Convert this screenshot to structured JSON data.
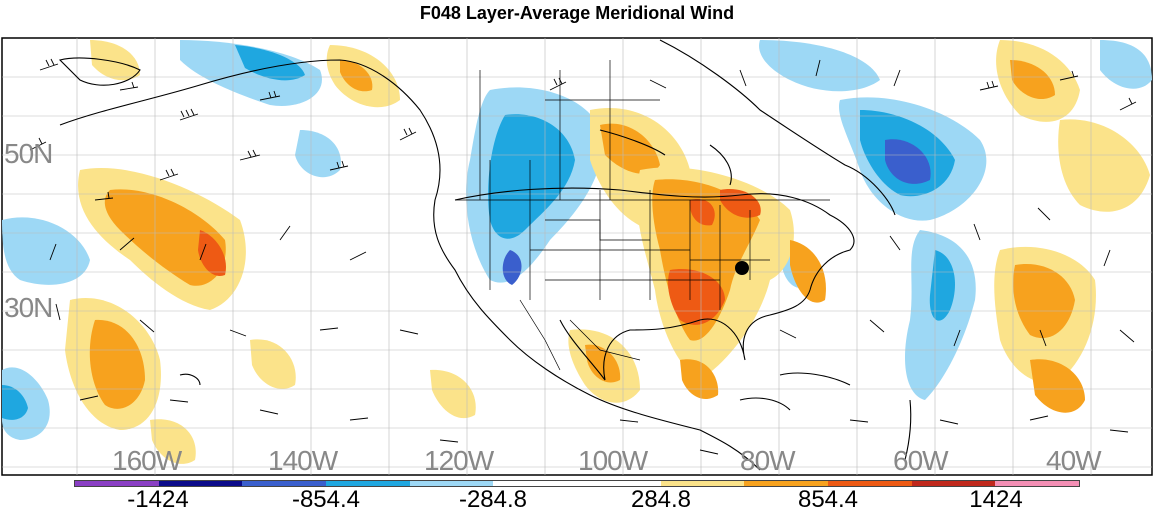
{
  "title": "F048 Layer-Average Meridional Wind",
  "latitude_labels": [
    "50N",
    "30N"
  ],
  "longitude_labels": [
    "160W",
    "140W",
    "120W",
    "100W",
    "80W",
    "60W",
    "40W"
  ],
  "colorbar": {
    "colors": [
      "#8a3fc4",
      "#0b0b8a",
      "#3a5fcd",
      "#1fa7e0",
      "#9dd8f5",
      "#ffffff",
      "#ffffff",
      "#fbe38a",
      "#f7a21e",
      "#ee5a14",
      "#c0281c",
      "#f48fb5"
    ],
    "labels": [
      "-1424",
      "-854.4",
      "-284.8",
      "284.8",
      "854.4",
      "1424"
    ]
  },
  "colors": {
    "positive_light": "#fbe38a",
    "positive_mid": "#f7a21e",
    "positive_strong": "#ee5a14",
    "negative_light": "#9dd8f5",
    "negative_mid": "#1fa7e0",
    "negative_strong": "#3a5fcd"
  }
}
